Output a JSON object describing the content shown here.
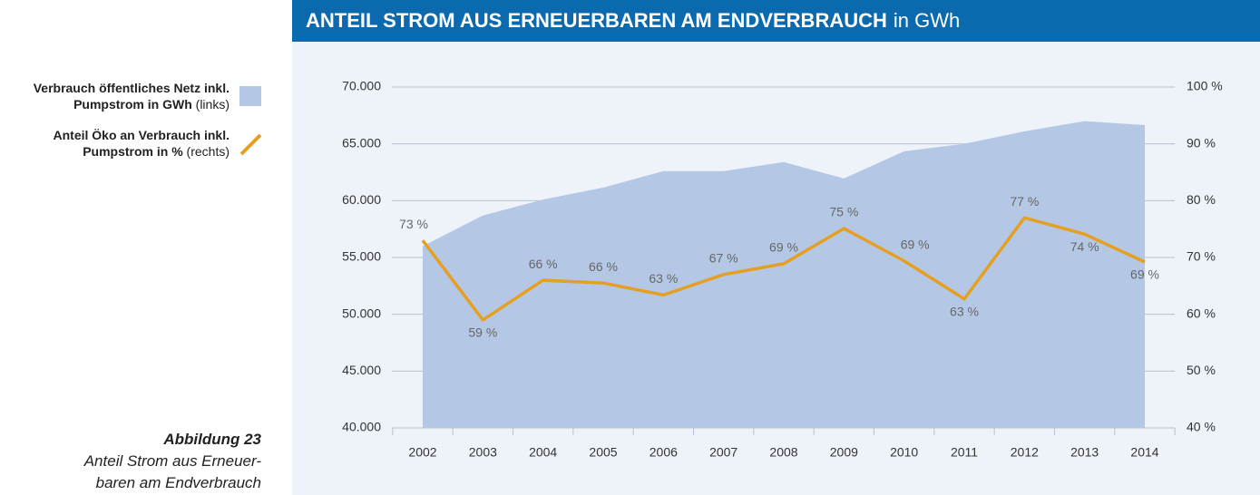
{
  "chart_data": {
    "type": "combo",
    "title": "ANTEIL STROM AUS ERNEUERBAREN AM ENDVERBRAUCH",
    "title_unit": "in GWh",
    "caption": {
      "label": "Abbildung 23",
      "lines": [
        "Anteil Strom aus Erneuer-",
        "baren am Endverbrauch"
      ]
    },
    "categories": [
      "2002",
      "2003",
      "2004",
      "2005",
      "2006",
      "2007",
      "2008",
      "2009",
      "2010",
      "2011",
      "2012",
      "2013",
      "2014"
    ],
    "series": [
      {
        "name": "Verbrauch öffentliches Netz inkl. Pumpstrom in GWh (links)",
        "type": "area",
        "axis": "y",
        "color": "#b4c8e6",
        "values": [
          56000,
          58700,
          60100,
          61150,
          62600,
          62600,
          63400,
          61950,
          64350,
          65000,
          66100,
          67000,
          66650
        ]
      },
      {
        "name": "Anteil Öko an Verbrauch inkl. Pumpstrom in % (rechts)",
        "type": "line",
        "axis": "y2",
        "color": "#e5a023",
        "values": [
          73,
          59,
          66,
          65.5,
          63.4,
          67,
          68.9,
          75.1,
          69.4,
          62.7,
          77,
          74.1,
          69.2
        ],
        "value_labels": [
          "73 %",
          "59 %",
          "66 %",
          "66 %",
          "63 %",
          "67 %",
          "69 %",
          "75 %",
          "69 %",
          "63 %",
          "77 %",
          "74 %",
          "69 %"
        ]
      }
    ],
    "ylim": [
      40000,
      70000
    ],
    "yticks": [
      {
        "value": 40000,
        "label": "40.000"
      },
      {
        "value": 45000,
        "label": "45.000"
      },
      {
        "value": 50000,
        "label": "50.000"
      },
      {
        "value": 55000,
        "label": "55.000"
      },
      {
        "value": 60000,
        "label": "60.000"
      },
      {
        "value": 65000,
        "label": "65.000"
      },
      {
        "value": 70000,
        "label": "70.000"
      }
    ],
    "y2lim": [
      40,
      100
    ],
    "y2ticks": [
      {
        "value": 40,
        "label": "40 %"
      },
      {
        "value": 50,
        "label": "50 %"
      },
      {
        "value": 60,
        "label": "60 %"
      },
      {
        "value": 70,
        "label": "70 %"
      },
      {
        "value": 80,
        "label": "80 %"
      },
      {
        "value": 90,
        "label": "90 %"
      },
      {
        "value": 100,
        "label": "100 %"
      }
    ],
    "grid": true,
    "legend": "left"
  }
}
